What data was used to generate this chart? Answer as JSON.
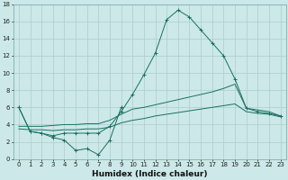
{
  "xlabel": "Humidex (Indice chaleur)",
  "x_all": [
    0,
    1,
    2,
    3,
    4,
    5,
    6,
    7,
    8,
    9,
    10,
    11,
    12,
    13,
    14,
    15,
    16,
    17,
    18,
    19,
    20,
    21,
    22,
    23
  ],
  "line1_x": [
    0,
    1,
    2,
    3,
    4,
    5,
    6,
    7,
    8,
    9
  ],
  "line1_y": [
    6.0,
    3.2,
    3.0,
    2.5,
    2.2,
    1.0,
    1.2,
    0.5,
    2.2,
    6.0
  ],
  "line2_x": [
    0,
    1,
    2,
    3,
    4,
    5,
    6,
    7,
    8,
    9,
    10,
    11,
    12,
    13,
    14,
    15,
    16,
    17,
    18,
    19,
    20,
    21,
    22,
    23
  ],
  "line2_y": [
    6.0,
    3.2,
    3.0,
    2.7,
    3.0,
    3.0,
    3.0,
    3.0,
    3.8,
    5.5,
    7.5,
    9.8,
    12.3,
    16.2,
    17.3,
    16.5,
    15.0,
    13.5,
    12.0,
    9.3,
    5.9,
    5.5,
    5.3,
    5.0
  ],
  "line3_x": [
    0,
    1,
    2,
    3,
    4,
    5,
    6,
    7,
    8,
    9,
    10,
    11,
    12,
    13,
    14,
    15,
    16,
    17,
    18,
    19,
    20,
    21,
    22,
    23
  ],
  "line3_y": [
    3.8,
    3.8,
    3.8,
    3.9,
    4.0,
    4.0,
    4.1,
    4.1,
    4.5,
    5.2,
    5.8,
    6.0,
    6.3,
    6.6,
    6.9,
    7.2,
    7.5,
    7.8,
    8.2,
    8.7,
    5.9,
    5.7,
    5.5,
    5.0
  ],
  "line4_x": [
    0,
    1,
    2,
    3,
    4,
    5,
    6,
    7,
    8,
    9,
    10,
    11,
    12,
    13,
    14,
    15,
    16,
    17,
    18,
    19,
    20,
    21,
    22,
    23
  ],
  "line4_y": [
    3.5,
    3.4,
    3.4,
    3.3,
    3.4,
    3.4,
    3.5,
    3.5,
    3.7,
    4.2,
    4.5,
    4.7,
    5.0,
    5.2,
    5.4,
    5.6,
    5.8,
    6.0,
    6.2,
    6.4,
    5.5,
    5.3,
    5.2,
    4.9
  ],
  "color": "#1a7060",
  "bg_color": "#cce8e8",
  "grid_color": "#aacece",
  "xlim": [
    -0.5,
    23.5
  ],
  "ylim": [
    0,
    18
  ],
  "yticks": [
    0,
    2,
    4,
    6,
    8,
    10,
    12,
    14,
    16,
    18
  ],
  "xticks": [
    0,
    1,
    2,
    3,
    4,
    5,
    6,
    7,
    8,
    9,
    10,
    11,
    12,
    13,
    14,
    15,
    16,
    17,
    18,
    19,
    20,
    21,
    22,
    23
  ],
  "tick_fontsize": 5.0,
  "xlabel_fontsize": 6.5
}
